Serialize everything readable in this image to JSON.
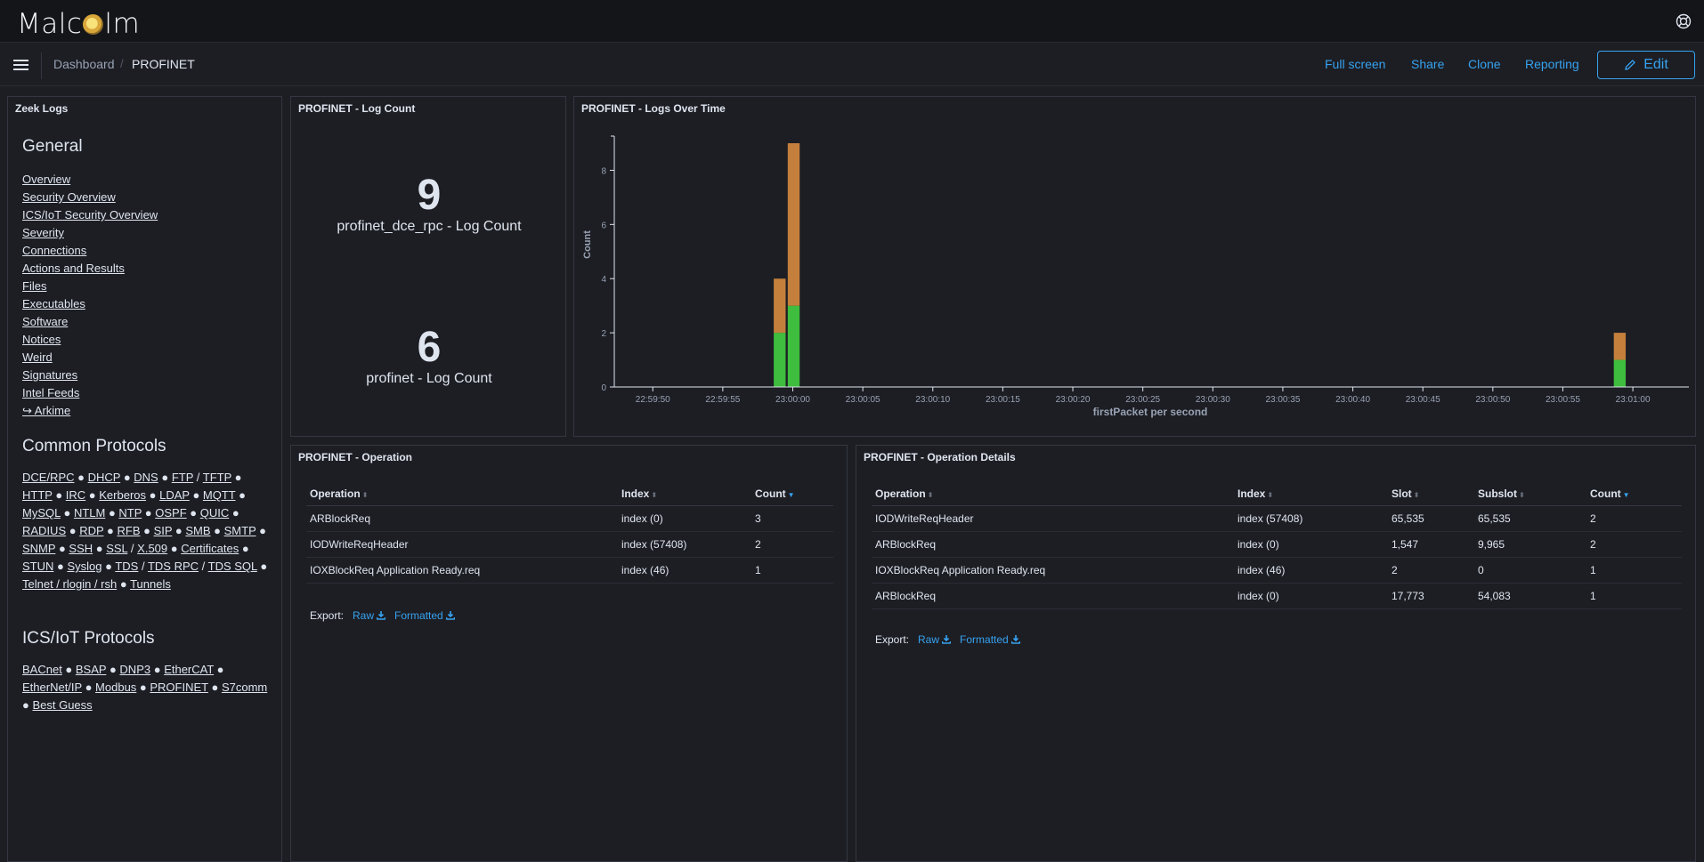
{
  "app": {
    "logo_text_before": "Malc",
    "logo_text_after": "lm"
  },
  "breadcrumb": {
    "parent": "Dashboard",
    "current": "PROFINET"
  },
  "nav": {
    "full_screen": "Full screen",
    "share": "Share",
    "clone": "Clone",
    "reporting": "Reporting",
    "edit": "Edit"
  },
  "sidebar": {
    "title": "Zeek Logs",
    "general_heading": "General",
    "general_links": [
      "Overview",
      "Security Overview",
      "ICS/IoT Security Overview",
      "Severity",
      "Connections",
      "Actions and Results",
      "Files",
      "Executables",
      "Software",
      "Notices",
      "Weird",
      "Signatures",
      "Intel Feeds",
      "↪ Arkime"
    ],
    "common_heading": "Common Protocols",
    "common_protocols": [
      "DCE/RPC",
      "DHCP",
      "DNS",
      "FTP",
      "TFTP",
      "HTTP",
      "IRC",
      "Kerberos",
      "LDAP",
      "MQTT",
      "MySQL",
      "NTLM",
      "NTP",
      "OSPF",
      "QUIC",
      "RADIUS",
      "RDP",
      "RFB",
      "SIP",
      "SMB",
      "SMTP",
      "SNMP",
      "SSH",
      "SSL",
      "X.509",
      "Certificates",
      "STUN",
      "Syslog",
      "TDS",
      "TDS RPC",
      "TDS SQL",
      "Telnet / rlogin / rsh",
      "Tunnels"
    ],
    "ics_heading": "ICS/IoT Protocols",
    "ics_protocols": [
      "BACnet",
      "BSAP",
      "DNP3",
      "EtherCAT",
      "EtherNet/IP",
      "Modbus",
      "PROFINET",
      "S7comm",
      "Best Guess"
    ]
  },
  "log_count": {
    "title": "PROFINET - Log Count",
    "metrics": [
      {
        "value": "9",
        "label": "profinet_dce_rpc - Log Count"
      },
      {
        "value": "6",
        "label": "profinet - Log Count"
      }
    ]
  },
  "chart_data": {
    "type": "bar",
    "title": "PROFINET - Logs Over Time",
    "xlabel": "firstPacket per second",
    "ylabel": "Count",
    "ylim": [
      0,
      9
    ],
    "yticks": [
      0,
      2,
      4,
      6,
      8
    ],
    "xticks": [
      "22:59:50",
      "22:59:55",
      "23:00:00",
      "23:00:05",
      "23:00:10",
      "23:00:15",
      "23:00:20",
      "23:00:25",
      "23:00:30",
      "23:00:35",
      "23:00:40",
      "23:00:45",
      "23:00:50",
      "23:00:55",
      "23:01:00"
    ],
    "stacked": true,
    "x": [
      "22:59:59",
      "23:00:00",
      "23:00:59"
    ],
    "series": [
      {
        "color": "#3ebd3e",
        "values": [
          2,
          3,
          1
        ]
      },
      {
        "color": "#c47f3c",
        "values": [
          2,
          6,
          1
        ]
      }
    ]
  },
  "operation": {
    "title": "PROFINET - Operation",
    "columns": [
      "Operation",
      "Index",
      "Count"
    ],
    "rows": [
      [
        "ARBlockReq",
        "index (0)",
        "3"
      ],
      [
        "IODWriteReqHeader",
        "index (57408)",
        "2"
      ],
      [
        "IOXBlockReq Application Ready.req",
        "index (46)",
        "1"
      ]
    ],
    "export_label": "Export:",
    "raw": "Raw",
    "formatted": "Formatted"
  },
  "operation_details": {
    "title": "PROFINET - Operation Details",
    "columns": [
      "Operation",
      "Index",
      "Slot",
      "Subslot",
      "Count"
    ],
    "rows": [
      [
        "IODWriteReqHeader",
        "index (57408)",
        "65,535",
        "65,535",
        "2"
      ],
      [
        "ARBlockReq",
        "index (0)",
        "1,547",
        "9,965",
        "2"
      ],
      [
        "IOXBlockReq Application Ready.req",
        "index (46)",
        "2",
        "0",
        "1"
      ],
      [
        "ARBlockReq",
        "index (0)",
        "17,773",
        "54,083",
        "1"
      ]
    ],
    "export_label": "Export:",
    "raw": "Raw",
    "formatted": "Formatted"
  },
  "colors": {
    "accent": "#36a2ef",
    "bar_green": "#3ebd3e",
    "bar_orange": "#c47f3c",
    "background": "#1d1e24"
  }
}
